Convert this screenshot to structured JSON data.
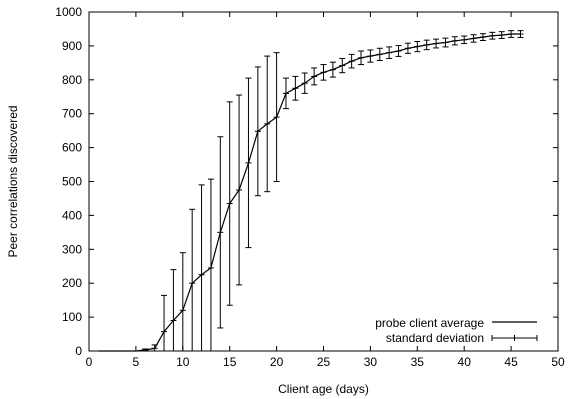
{
  "chart_data": {
    "type": "line",
    "title": "",
    "xlabel": "Client age (days)",
    "ylabel": "Peer correlations discovered",
    "xlim": [
      0,
      50
    ],
    "ylim": [
      0,
      1000
    ],
    "xticks": [
      0,
      5,
      10,
      15,
      20,
      25,
      30,
      35,
      40,
      45,
      50
    ],
    "yticks": [
      0,
      100,
      200,
      300,
      400,
      500,
      600,
      700,
      800,
      900,
      1000
    ],
    "grid": false,
    "legend_position": "bottom-right",
    "series": [
      {
        "name": "probe client average",
        "style": "line",
        "x": [
          1,
          2,
          3,
          4,
          5,
          6,
          7,
          8,
          9,
          10,
          11,
          12,
          13,
          14,
          15,
          16,
          17,
          18,
          19,
          20,
          21,
          22,
          23,
          24,
          25,
          26,
          27,
          28,
          29,
          30,
          31,
          32,
          33,
          34,
          35,
          36,
          37,
          38,
          39,
          40,
          41,
          42,
          43,
          44,
          45,
          46
        ],
        "y": [
          0,
          0,
          0,
          0,
          0,
          3,
          8,
          57,
          90,
          120,
          200,
          225,
          245,
          350,
          435,
          475,
          555,
          648,
          670,
          690,
          760,
          775,
          790,
          810,
          822,
          830,
          842,
          855,
          865,
          870,
          875,
          880,
          885,
          893,
          898,
          903,
          907,
          910,
          915,
          918,
          922,
          926,
          930,
          932,
          935,
          935
        ]
      },
      {
        "name": "standard deviation",
        "style": "errorbars",
        "x": [
          1,
          2,
          3,
          4,
          5,
          6,
          7,
          8,
          9,
          10,
          11,
          12,
          13,
          14,
          15,
          16,
          17,
          18,
          19,
          20,
          21,
          22,
          23,
          24,
          25,
          26,
          27,
          28,
          29,
          30,
          31,
          32,
          33,
          34,
          35,
          36,
          37,
          38,
          39,
          40,
          41,
          42,
          43,
          44,
          45,
          46
        ],
        "y": [
          0,
          0,
          0,
          0,
          0,
          3,
          8,
          57,
          90,
          120,
          200,
          225,
          245,
          350,
          435,
          475,
          555,
          648,
          670,
          690,
          760,
          775,
          790,
          810,
          822,
          830,
          842,
          855,
          865,
          870,
          875,
          880,
          885,
          893,
          898,
          903,
          907,
          910,
          915,
          918,
          922,
          926,
          930,
          932,
          935,
          935
        ],
        "err": [
          0,
          0,
          0,
          0,
          0,
          3,
          10,
          107,
          150,
          170,
          218,
          265,
          262,
          282,
          300,
          280,
          250,
          190,
          200,
          190,
          45,
          35,
          30,
          25,
          23,
          22,
          21,
          20,
          20,
          18,
          18,
          17,
          16,
          15,
          15,
          14,
          13,
          13,
          12,
          11,
          11,
          10,
          10,
          10,
          10,
          10
        ]
      }
    ]
  }
}
